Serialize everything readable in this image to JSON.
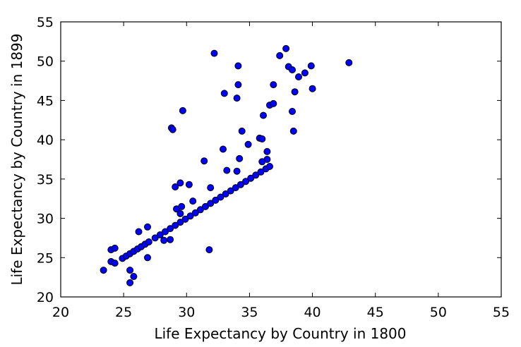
{
  "chart_data": {
    "type": "scatter",
    "title": "",
    "xlabel": "Life Expectancy by Country in 1800",
    "ylabel": "Life Expectancy by Country in 1899",
    "xlim": [
      20,
      55
    ],
    "ylim": [
      20,
      55
    ],
    "xticks": [
      20,
      25,
      30,
      35,
      40,
      45,
      50,
      55
    ],
    "yticks": [
      20,
      25,
      30,
      35,
      40,
      45,
      50,
      55
    ],
    "grid": false,
    "marker_color": "#0000ff",
    "marker_edge": "#000000",
    "series": [
      {
        "points": [
          [
            23.4,
            23.4
          ],
          [
            24.0,
            24.5
          ],
          [
            24.3,
            24.3
          ],
          [
            24.0,
            26.0
          ],
          [
            24.3,
            26.2
          ],
          [
            25.5,
            23.4
          ],
          [
            25.8,
            22.6
          ],
          [
            25.5,
            21.8
          ],
          [
            24.9,
            24.9
          ],
          [
            25.2,
            25.2
          ],
          [
            25.5,
            25.5
          ],
          [
            25.8,
            25.8
          ],
          [
            26.1,
            26.1
          ],
          [
            26.4,
            26.4
          ],
          [
            26.7,
            26.7
          ],
          [
            27.0,
            27.0
          ],
          [
            27.5,
            27.5
          ],
          [
            27.9,
            27.9
          ],
          [
            28.3,
            28.3
          ],
          [
            28.7,
            28.7
          ],
          [
            29.1,
            29.1
          ],
          [
            29.5,
            29.5
          ],
          [
            29.9,
            29.9
          ],
          [
            30.3,
            30.3
          ],
          [
            30.7,
            30.7
          ],
          [
            31.1,
            31.1
          ],
          [
            31.5,
            31.5
          ],
          [
            31.9,
            31.9
          ],
          [
            32.3,
            32.3
          ],
          [
            32.7,
            32.7
          ],
          [
            33.1,
            33.1
          ],
          [
            33.5,
            33.5
          ],
          [
            33.9,
            33.9
          ],
          [
            34.3,
            34.3
          ],
          [
            34.7,
            34.7
          ],
          [
            35.1,
            35.1
          ],
          [
            35.5,
            35.5
          ],
          [
            35.9,
            35.9
          ],
          [
            36.3,
            36.3
          ],
          [
            36.6,
            36.6
          ],
          [
            26.2,
            28.3
          ],
          [
            26.9,
            28.9
          ],
          [
            26.9,
            25.0
          ],
          [
            28.2,
            27.2
          ],
          [
            28.7,
            27.3
          ],
          [
            29.2,
            31.2
          ],
          [
            29.5,
            30.6
          ],
          [
            29.6,
            31.5
          ],
          [
            29.1,
            34.0
          ],
          [
            29.5,
            34.5
          ],
          [
            30.2,
            34.3
          ],
          [
            30.5,
            32.2
          ],
          [
            31.4,
            37.3
          ],
          [
            31.9,
            33.9
          ],
          [
            31.8,
            26.0
          ],
          [
            32.2,
            51.0
          ],
          [
            33.0,
            45.9
          ],
          [
            32.9,
            38.8
          ],
          [
            33.2,
            36.1
          ],
          [
            34.0,
            36.0
          ],
          [
            34.2,
            37.6
          ],
          [
            34.0,
            45.3
          ],
          [
            34.1,
            47.0
          ],
          [
            34.1,
            49.4
          ],
          [
            34.4,
            41.1
          ],
          [
            34.9,
            39.4
          ],
          [
            28.8,
            41.5
          ],
          [
            28.9,
            41.3
          ],
          [
            29.7,
            43.7
          ],
          [
            35.8,
            40.2
          ],
          [
            36.0,
            40.1
          ],
          [
            36.1,
            43.1
          ],
          [
            36.4,
            38.5
          ],
          [
            36.4,
            37.5
          ],
          [
            36.0,
            37.2
          ],
          [
            36.6,
            44.4
          ],
          [
            36.9,
            44.6
          ],
          [
            36.9,
            47.0
          ],
          [
            37.4,
            50.7
          ],
          [
            37.9,
            51.6
          ],
          [
            38.1,
            49.3
          ],
          [
            38.4,
            48.9
          ],
          [
            38.4,
            43.6
          ],
          [
            38.5,
            41.1
          ],
          [
            38.6,
            46.1
          ],
          [
            38.9,
            48.0
          ],
          [
            39.4,
            48.5
          ],
          [
            39.9,
            49.4
          ],
          [
            40.0,
            46.5
          ],
          [
            42.9,
            49.8
          ]
        ]
      }
    ]
  }
}
